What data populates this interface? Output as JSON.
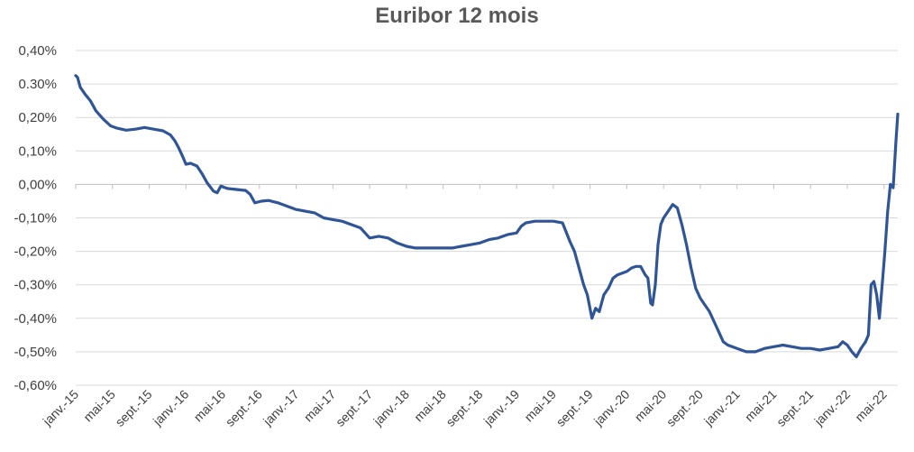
{
  "chart_data": {
    "type": "line",
    "title": "Euribor 12 mois",
    "xlabel": "",
    "ylabel": "",
    "ylim": [
      -0.6,
      0.4
    ],
    "grid": true,
    "legend": "none",
    "yticks": [
      {
        "value": 0.4,
        "label": "0,40%"
      },
      {
        "value": 0.3,
        "label": "0.30%"
      },
      {
        "value": 0.2,
        "label": "0,20%"
      },
      {
        "value": 0.1,
        "label": "0,10%"
      },
      {
        "value": 0.0,
        "label": "0,00%"
      },
      {
        "value": -0.1,
        "label": "-0,10%"
      },
      {
        "value": -0.2,
        "label": "-0,20%"
      },
      {
        "value": -0.3,
        "label": "-0,30%"
      },
      {
        "value": -0.4,
        "label": "-0,40%"
      },
      {
        "value": -0.5,
        "label": "-0,50%"
      },
      {
        "value": -0.6,
        "label": "-0,60%"
      }
    ],
    "xticks": [
      {
        "month": 0,
        "label": "janv.-15"
      },
      {
        "month": 4,
        "label": "mai-15"
      },
      {
        "month": 8,
        "label": "sept.-15"
      },
      {
        "month": 12,
        "label": "janv.-16"
      },
      {
        "month": 16,
        "label": "mai-16"
      },
      {
        "month": 20,
        "label": "sept.-16"
      },
      {
        "month": 24,
        "label": "janv.-17"
      },
      {
        "month": 28,
        "label": "mai-17"
      },
      {
        "month": 32,
        "label": "sept.-17"
      },
      {
        "month": 36,
        "label": "janv.-18"
      },
      {
        "month": 40,
        "label": "mai-18"
      },
      {
        "month": 44,
        "label": "sept.-18"
      },
      {
        "month": 48,
        "label": "janv.-19"
      },
      {
        "month": 52,
        "label": "mai-19"
      },
      {
        "month": 56,
        "label": "sept.-19"
      },
      {
        "month": 60,
        "label": "janv.-20"
      },
      {
        "month": 64,
        "label": "mai-20"
      },
      {
        "month": 68,
        "label": "sept.-20"
      },
      {
        "month": 72,
        "label": "janv.-21"
      },
      {
        "month": 76,
        "label": "mai-21"
      },
      {
        "month": 80,
        "label": "sept.-21"
      },
      {
        "month": 84,
        "label": "janv.-22"
      },
      {
        "month": 88,
        "label": "mai-22"
      }
    ],
    "series": [
      {
        "color": "#2f5597",
        "points": [
          [
            0,
            0.325
          ],
          [
            0.2,
            0.32
          ],
          [
            0.5,
            0.29
          ],
          [
            1,
            0.27
          ],
          [
            1.6,
            0.25
          ],
          [
            2.2,
            0.22
          ],
          [
            3,
            0.195
          ],
          [
            3.8,
            0.175
          ],
          [
            4.5,
            0.168
          ],
          [
            5.5,
            0.162
          ],
          [
            6.5,
            0.165
          ],
          [
            7.5,
            0.17
          ],
          [
            8.5,
            0.165
          ],
          [
            9.5,
            0.16
          ],
          [
            10.3,
            0.148
          ],
          [
            10.8,
            0.13
          ],
          [
            11.2,
            0.11
          ],
          [
            11.7,
            0.08
          ],
          [
            12,
            0.06
          ],
          [
            12.5,
            0.063
          ],
          [
            13.2,
            0.055
          ],
          [
            13.8,
            0.03
          ],
          [
            14.3,
            0.005
          ],
          [
            15,
            -0.02
          ],
          [
            15.4,
            -0.025
          ],
          [
            15.8,
            -0.005
          ],
          [
            16.5,
            -0.012
          ],
          [
            17.5,
            -0.015
          ],
          [
            18.5,
            -0.018
          ],
          [
            19,
            -0.03
          ],
          [
            19.5,
            -0.055
          ],
          [
            20.2,
            -0.05
          ],
          [
            21,
            -0.048
          ],
          [
            22,
            -0.055
          ],
          [
            23,
            -0.065
          ],
          [
            24,
            -0.075
          ],
          [
            25,
            -0.08
          ],
          [
            26,
            -0.085
          ],
          [
            27,
            -0.1
          ],
          [
            28,
            -0.105
          ],
          [
            29,
            -0.11
          ],
          [
            30,
            -0.12
          ],
          [
            31,
            -0.13
          ],
          [
            32,
            -0.16
          ],
          [
            33,
            -0.155
          ],
          [
            34,
            -0.16
          ],
          [
            35,
            -0.175
          ],
          [
            36,
            -0.185
          ],
          [
            37,
            -0.19
          ],
          [
            38,
            -0.19
          ],
          [
            39,
            -0.19
          ],
          [
            40,
            -0.19
          ],
          [
            41,
            -0.19
          ],
          [
            42,
            -0.185
          ],
          [
            43,
            -0.18
          ],
          [
            44,
            -0.175
          ],
          [
            45,
            -0.165
          ],
          [
            46,
            -0.16
          ],
          [
            47,
            -0.15
          ],
          [
            48,
            -0.145
          ],
          [
            48.5,
            -0.125
          ],
          [
            49,
            -0.115
          ],
          [
            50,
            -0.11
          ],
          [
            51,
            -0.11
          ],
          [
            52,
            -0.11
          ],
          [
            53,
            -0.115
          ],
          [
            53.8,
            -0.17
          ],
          [
            54.3,
            -0.2
          ],
          [
            54.8,
            -0.25
          ],
          [
            55.3,
            -0.3
          ],
          [
            55.7,
            -0.33
          ],
          [
            56.2,
            -0.4
          ],
          [
            56.6,
            -0.37
          ],
          [
            57,
            -0.38
          ],
          [
            57.5,
            -0.33
          ],
          [
            58,
            -0.31
          ],
          [
            58.5,
            -0.28
          ],
          [
            59,
            -0.27
          ],
          [
            59.5,
            -0.265
          ],
          [
            60,
            -0.26
          ],
          [
            60.5,
            -0.25
          ],
          [
            61,
            -0.245
          ],
          [
            61.5,
            -0.245
          ],
          [
            62,
            -0.27
          ],
          [
            62.3,
            -0.28
          ],
          [
            62.6,
            -0.355
          ],
          [
            62.8,
            -0.36
          ],
          [
            63.1,
            -0.3
          ],
          [
            63.4,
            -0.18
          ],
          [
            63.7,
            -0.12
          ],
          [
            64,
            -0.1
          ],
          [
            64.5,
            -0.08
          ],
          [
            65,
            -0.06
          ],
          [
            65.5,
            -0.07
          ],
          [
            66,
            -0.12
          ],
          [
            66.5,
            -0.18
          ],
          [
            67,
            -0.25
          ],
          [
            67.5,
            -0.31
          ],
          [
            68,
            -0.34
          ],
          [
            68.5,
            -0.36
          ],
          [
            69,
            -0.38
          ],
          [
            69.5,
            -0.41
          ],
          [
            70,
            -0.44
          ],
          [
            70.5,
            -0.47
          ],
          [
            71,
            -0.48
          ],
          [
            72,
            -0.49
          ],
          [
            73,
            -0.5
          ],
          [
            74,
            -0.5
          ],
          [
            75,
            -0.49
          ],
          [
            76,
            -0.485
          ],
          [
            77,
            -0.48
          ],
          [
            78,
            -0.485
          ],
          [
            79,
            -0.49
          ],
          [
            80,
            -0.49
          ],
          [
            81,
            -0.495
          ],
          [
            82,
            -0.49
          ],
          [
            83,
            -0.485
          ],
          [
            83.5,
            -0.47
          ],
          [
            84,
            -0.48
          ],
          [
            84.5,
            -0.5
          ],
          [
            85,
            -0.515
          ],
          [
            85.5,
            -0.49
          ],
          [
            86,
            -0.47
          ],
          [
            86.3,
            -0.45
          ],
          [
            86.6,
            -0.3
          ],
          [
            86.9,
            -0.29
          ],
          [
            87.2,
            -0.33
          ],
          [
            87.5,
            -0.4
          ],
          [
            87.8,
            -0.3
          ],
          [
            88.1,
            -0.2
          ],
          [
            88.4,
            -0.08
          ],
          [
            88.7,
            0.0
          ],
          [
            89,
            -0.01
          ],
          [
            89.3,
            0.13
          ],
          [
            89.5,
            0.21
          ]
        ]
      }
    ]
  }
}
